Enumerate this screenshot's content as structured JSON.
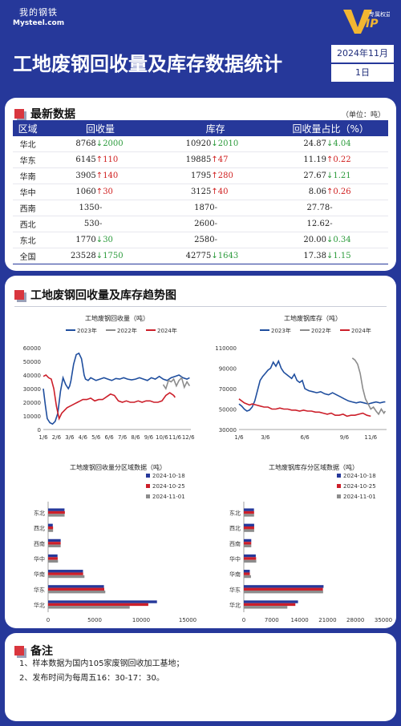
{
  "header": {
    "logo_cn": "我的钢铁",
    "logo_en": "Mysteel.com",
    "vip_label": "专属权益",
    "vip_mark": "VIP",
    "title": "工地废钢回收量及库存数据统计",
    "date_month": "2024年11月",
    "date_day": "1日"
  },
  "latest": {
    "section_title": "最新数据",
    "unit": "（单位：吨）",
    "columns": [
      "区域",
      "回收量",
      "库存",
      "回收量占比（%）"
    ],
    "rows": [
      {
        "region": "华北",
        "rec": "8768",
        "rec_dir": "down",
        "rec_chg": "2000",
        "inv": "10920",
        "inv_dir": "down",
        "inv_chg": "2010",
        "ratio": "24.87",
        "ratio_dir": "down",
        "ratio_chg": "4.04"
      },
      {
        "region": "华东",
        "rec": "6145",
        "rec_dir": "up",
        "rec_chg": "110",
        "inv": "19885",
        "inv_dir": "up",
        "inv_chg": "47",
        "ratio": "11.19",
        "ratio_dir": "up",
        "ratio_chg": "0.22"
      },
      {
        "region": "华南",
        "rec": "3905",
        "rec_dir": "up",
        "rec_chg": "140",
        "inv": "1795",
        "inv_dir": "up",
        "inv_chg": "280",
        "ratio": "27.67",
        "ratio_dir": "down",
        "ratio_chg": "1.21"
      },
      {
        "region": "华中",
        "rec": "1060",
        "rec_dir": "up",
        "rec_chg": "30",
        "inv": "3125",
        "inv_dir": "up",
        "inv_chg": "40",
        "ratio": "8.06",
        "ratio_dir": "up",
        "ratio_chg": "0.26"
      },
      {
        "region": "西南",
        "rec": "1350",
        "rec_dir": "none",
        "rec_chg": "-",
        "inv": "1870",
        "inv_dir": "none",
        "inv_chg": "-",
        "ratio": "27.78",
        "ratio_dir": "none",
        "ratio_chg": "-"
      },
      {
        "region": "西北",
        "rec": "530",
        "rec_dir": "none",
        "rec_chg": "-",
        "inv": "2600",
        "inv_dir": "none",
        "inv_chg": "-",
        "ratio": "12.62",
        "ratio_dir": "none",
        "ratio_chg": "-"
      },
      {
        "region": "东北",
        "rec": "1770",
        "rec_dir": "down",
        "rec_chg": "30",
        "inv": "2580",
        "inv_dir": "none",
        "inv_chg": "-",
        "ratio": "20.00",
        "ratio_dir": "down",
        "ratio_chg": "0.34"
      },
      {
        "region": "全国",
        "rec": "23528",
        "rec_dir": "down",
        "rec_chg": "1750",
        "inv": "42775",
        "inv_dir": "down",
        "inv_chg": "1643",
        "ratio": "17.38",
        "ratio_dir": "down",
        "ratio_chg": "1.15"
      }
    ]
  },
  "trend": {
    "section_title": "工地废钢回收量及库存趋势图"
  },
  "notes": {
    "section_title": "备注",
    "lines": [
      "1、样本数据为国内105家废钢回收加工基地；",
      "2、发布时间为每周五16：30-17：30。"
    ]
  },
  "colors": {
    "brand": "#26389a",
    "accent_red": "#d9363e",
    "y2023": "#1f4e9e",
    "y2022": "#8c8c8c",
    "y2024": "#cc1f2a"
  },
  "chart_data": [
    {
      "type": "line",
      "title": "工地废钢回收量（吨）",
      "x_ticks": [
        "1/6",
        "2/6",
        "3/6",
        "4/6",
        "5/6",
        "6/6",
        "7/6",
        "8/6",
        "9/6",
        "10/6",
        "11/6",
        "12/6"
      ],
      "ylim": [
        0,
        60000
      ],
      "y_ticks": [
        "0",
        "10000",
        "20000",
        "30000",
        "40000",
        "50000",
        "60000"
      ],
      "legend": "top",
      "series": [
        {
          "name": "2023年",
          "color": "#1f4e9e",
          "x": [
            1,
            1.15,
            1.3,
            1.5,
            1.7,
            1.9,
            2.1,
            2.3,
            2.5,
            2.7,
            2.9,
            3.0,
            3.1,
            3.3,
            3.5,
            3.7,
            3.9,
            4.0,
            4.1,
            4.2,
            4.4,
            4.6,
            4.8,
            5.0,
            5.3,
            5.6,
            5.9,
            6.2,
            6.5,
            6.8,
            7.1,
            7.4,
            7.7,
            8.0,
            8.3,
            8.6,
            8.9,
            9.2,
            9.5,
            9.8,
            10.1,
            10.4,
            10.7,
            11.0,
            11.3,
            11.6,
            11.9,
            12.1
          ],
          "y": [
            30000,
            18000,
            8000,
            5000,
            4000,
            6000,
            12000,
            28000,
            38000,
            33000,
            30000,
            32000,
            36000,
            48000,
            55000,
            56000,
            52000,
            46000,
            40000,
            37000,
            36000,
            38000,
            37000,
            36000,
            37000,
            38000,
            37000,
            36000,
            37500,
            37000,
            38000,
            37000,
            36500,
            37000,
            38000,
            37000,
            36000,
            38000,
            37000,
            39000,
            37000,
            36000,
            38000,
            39000,
            40000,
            38000,
            37000,
            38000
          ]
        },
        {
          "name": "2022年",
          "color": "#8c8c8c",
          "x": [
            10.1,
            10.3,
            10.5,
            10.7,
            10.9,
            11.1,
            11.3,
            11.5,
            11.7,
            11.9,
            12.1
          ],
          "y": [
            33000,
            30000,
            36000,
            35000,
            37000,
            32000,
            36000,
            38000,
            31000,
            35000,
            32000
          ]
        },
        {
          "name": "2024年",
          "color": "#cc1f2a",
          "x": [
            1,
            1.2,
            1.4,
            1.6,
            1.8,
            2.0,
            2.2,
            2.4,
            2.6,
            2.8,
            3.0,
            3.2,
            3.4,
            3.6,
            3.8,
            4.0,
            4.3,
            4.6,
            4.9,
            5.2,
            5.5,
            5.8,
            6.1,
            6.4,
            6.7,
            7.0,
            7.3,
            7.6,
            7.9,
            8.2,
            8.5,
            8.8,
            9.1,
            9.4,
            9.7,
            10.0,
            10.3,
            10.6,
            10.9,
            11.0
          ],
          "y": [
            39000,
            40000,
            38000,
            37000,
            30000,
            17000,
            8000,
            12000,
            14000,
            16000,
            17000,
            18000,
            19000,
            20000,
            21000,
            22000,
            22000,
            23000,
            21000,
            22000,
            22000,
            24000,
            26000,
            25000,
            21000,
            20000,
            21000,
            20000,
            20000,
            21000,
            20000,
            21000,
            21000,
            20000,
            20000,
            21000,
            25000,
            27000,
            25000,
            23500
          ]
        }
      ]
    },
    {
      "type": "line",
      "title": "工地废钢库存（吨）",
      "x_ticks": [
        "1/6",
        "3/6",
        "6/6",
        "9/6",
        "11/6"
      ],
      "ylim": [
        30000,
        110000
      ],
      "y_ticks": [
        "30000",
        "50000",
        "70000",
        "90000",
        "110000"
      ],
      "legend": "top",
      "series": [
        {
          "name": "2023年",
          "color": "#1f4e9e",
          "x": [
            1,
            1.2,
            1.4,
            1.6,
            1.8,
            2.0,
            2.2,
            2.4,
            2.6,
            2.8,
            3.0,
            3.2,
            3.4,
            3.6,
            3.8,
            4.0,
            4.2,
            4.4,
            4.6,
            4.8,
            5.0,
            5.2,
            5.4,
            5.6,
            5.8,
            6.0,
            6.3,
            6.6,
            6.9,
            7.2,
            7.5,
            7.8,
            8.1,
            8.4,
            8.7,
            9.0,
            9.3,
            9.6,
            9.9,
            10.2,
            10.5,
            10.8,
            11.1,
            11.4,
            11.7,
            12.0,
            12.1
          ],
          "y": [
            55000,
            53000,
            50000,
            48000,
            49000,
            52000,
            58000,
            68000,
            78000,
            82000,
            85000,
            88000,
            90000,
            96000,
            92000,
            97000,
            90000,
            86000,
            84000,
            82000,
            80000,
            84000,
            78000,
            76000,
            78000,
            70000,
            68000,
            67000,
            66000,
            67000,
            65000,
            64000,
            66000,
            64000,
            62000,
            60000,
            58000,
            57000,
            56000,
            57000,
            56000,
            55000,
            56000,
            57000,
            56000,
            57000,
            57000
          ]
        },
        {
          "name": "2022年",
          "color": "#8c8c8c",
          "x": [
            9.6,
            9.8,
            10.0,
            10.2,
            10.4,
            10.6,
            10.8,
            11.0,
            11.2,
            11.4,
            11.6,
            11.8,
            12.0,
            12.1
          ],
          "y": [
            100000,
            98000,
            94000,
            85000,
            70000,
            60000,
            55000,
            50000,
            52000,
            48000,
            45000,
            50000,
            46000,
            48000
          ]
        },
        {
          "name": "2024年",
          "color": "#cc1f2a",
          "x": [
            1,
            1.2,
            1.4,
            1.6,
            1.8,
            2.0,
            2.3,
            2.6,
            2.9,
            3.2,
            3.5,
            3.8,
            4.1,
            4.4,
            4.7,
            5.0,
            5.3,
            5.6,
            5.9,
            6.2,
            6.5,
            6.8,
            7.1,
            7.4,
            7.7,
            8.0,
            8.3,
            8.6,
            8.9,
            9.2,
            9.5,
            9.8,
            10.1,
            10.4,
            10.7,
            11.0
          ],
          "y": [
            60000,
            58000,
            56000,
            55000,
            54000,
            55000,
            54000,
            53000,
            52000,
            52000,
            50000,
            50000,
            51000,
            50000,
            50000,
            49000,
            49000,
            48000,
            49000,
            48000,
            48000,
            47000,
            47000,
            46000,
            45000,
            46000,
            44000,
            44000,
            45000,
            43000,
            44000,
            44000,
            45000,
            46000,
            44000,
            43000
          ]
        }
      ]
    },
    {
      "type": "bar",
      "orientation": "horizontal",
      "title": "工地废钢回收量分区域数据（吨）",
      "categories": [
        "东北",
        "西北",
        "西南",
        "华中",
        "华南",
        "华东",
        "华北"
      ],
      "xlim": [
        0,
        15000
      ],
      "x_ticks": [
        "0",
        "5000",
        "10000",
        "15000"
      ],
      "legend": "top-right",
      "series": [
        {
          "name": "2024-10-18",
          "color": "#26389a",
          "values": [
            1760,
            500,
            1350,
            1010,
            3750,
            6000,
            11700
          ]
        },
        {
          "name": "2024-10-25",
          "color": "#cc1f2a",
          "values": [
            1800,
            530,
            1350,
            1030,
            3765,
            6035,
            10768
          ]
        },
        {
          "name": "2024-11-01",
          "color": "#8c8c8c",
          "values": [
            1770,
            530,
            1350,
            1060,
            3905,
            6145,
            8768
          ]
        }
      ]
    },
    {
      "type": "bar",
      "orientation": "horizontal",
      "title": "工地废钢库存分区域数据（吨）",
      "categories": [
        "东北",
        "西北",
        "西南",
        "华中",
        "华南",
        "华东",
        "华北"
      ],
      "xlim": [
        0,
        35000
      ],
      "x_ticks": [
        "0",
        "7000",
        "14000",
        "21000",
        "28000",
        "35000"
      ],
      "legend": "top-right",
      "series": [
        {
          "name": "2024-10-18",
          "color": "#26389a",
          "values": [
            2550,
            2600,
            1870,
            3000,
            1500,
            20000,
            13600
          ]
        },
        {
          "name": "2024-10-25",
          "color": "#cc1f2a",
          "values": [
            2580,
            2600,
            1870,
            3085,
            1515,
            19838,
            12930
          ]
        },
        {
          "name": "2024-11-01",
          "color": "#8c8c8c",
          "values": [
            2580,
            2600,
            1870,
            3125,
            1795,
            19885,
            10920
          ]
        }
      ]
    }
  ]
}
